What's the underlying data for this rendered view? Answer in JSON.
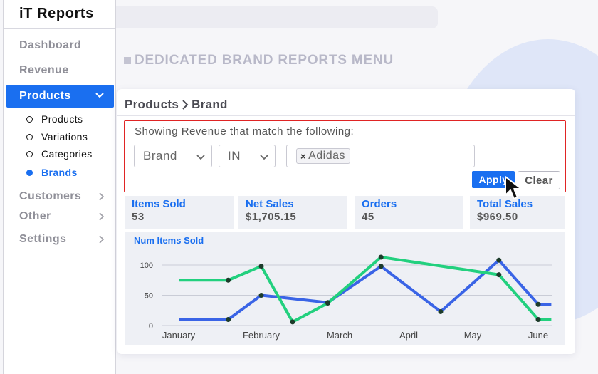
{
  "app": {
    "title": "iT Reports"
  },
  "sidebar": {
    "items": [
      {
        "label": "Dashboard"
      },
      {
        "label": "Revenue"
      },
      {
        "label": "Products",
        "active": true
      },
      {
        "label": "Customers"
      },
      {
        "label": "Other"
      },
      {
        "label": "Settings"
      }
    ],
    "subitems": [
      {
        "label": "Products"
      },
      {
        "label": "Variations"
      },
      {
        "label": "Categories"
      },
      {
        "label": "Brands",
        "active": true
      }
    ]
  },
  "page": {
    "menu_title": "DEDICATED BRAND REPORTS MENU"
  },
  "breadcrumb": {
    "parent": "Products",
    "current": "Brand"
  },
  "filter": {
    "title": "Showing Revenue that match the following:",
    "field_value": "Brand",
    "operator_value": "IN",
    "tags": [
      "Adidas"
    ],
    "apply_label": "Apply",
    "clear_label": "Clear"
  },
  "stats": [
    {
      "label": "Items Sold",
      "value": "53"
    },
    {
      "label": "Net Sales",
      "value": "$1,705.15"
    },
    {
      "label": "Orders",
      "value": "45"
    },
    {
      "label": "Total Sales",
      "value": "$969.50"
    }
  ],
  "colors": {
    "accent": "#1a6ff0",
    "series_blue": "#3a64e6",
    "series_green": "#22d07e",
    "filter_border": "#e02424"
  },
  "chart_data": {
    "type": "line",
    "title": "Num Items Sold",
    "categories": [
      "January",
      "February",
      "March",
      "April",
      "May",
      "June"
    ],
    "y_ticks": [
      0,
      50,
      100
    ],
    "ylim": [
      0,
      120
    ],
    "grid": true,
    "series": [
      {
        "color": "#3a64e6",
        "points": [
          [
            0,
            10
          ],
          [
            0.6,
            10
          ],
          [
            1,
            50
          ],
          [
            1.85,
            38
          ],
          [
            2.6,
            98
          ],
          [
            3.5,
            23
          ],
          [
            4.4,
            108
          ],
          [
            5,
            35
          ],
          [
            5.2,
            35
          ]
        ]
      },
      {
        "color": "#22d07e",
        "points": [
          [
            0,
            75
          ],
          [
            0.6,
            75
          ],
          [
            1,
            98
          ],
          [
            1.4,
            6
          ],
          [
            1.85,
            37
          ],
          [
            2.6,
            113
          ],
          [
            4.4,
            84
          ],
          [
            5,
            10
          ],
          [
            5.2,
            10
          ]
        ]
      }
    ]
  }
}
